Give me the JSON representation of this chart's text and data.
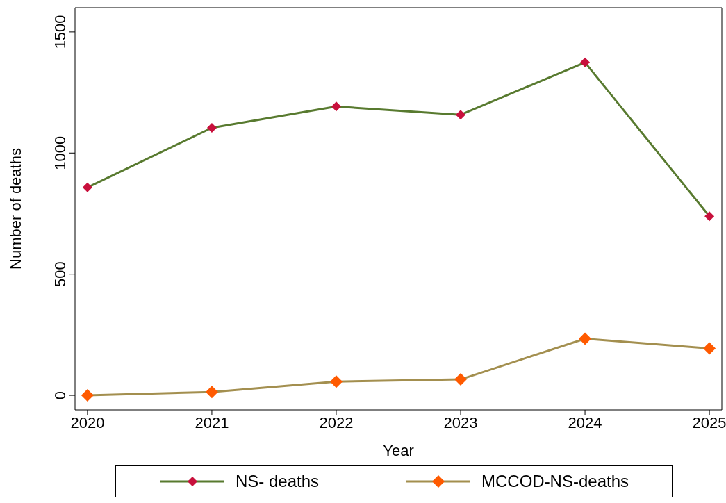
{
  "chart_data": {
    "type": "line",
    "xlabel": "Year",
    "ylabel": "Number of deaths",
    "x": [
      2020,
      2021,
      2022,
      2023,
      2024,
      2025
    ],
    "xlim": [
      2019.9,
      2025.1
    ],
    "xticks": [
      2020,
      2021,
      2022,
      2023,
      2024,
      2025
    ],
    "ylim": [
      -60,
      1600
    ],
    "yticks": [
      0,
      500,
      1000,
      1500
    ],
    "legend": "bottom",
    "marker": "diamond",
    "series": [
      {
        "name": "NS- deaths",
        "color": "#587a2f",
        "colors": [
          "#c8103c",
          "#c8103c",
          "#c8103c",
          "#c8103c",
          "#c8103c",
          "#c8103c"
        ],
        "values": [
          858,
          1104,
          1192,
          1158,
          1374,
          739
        ]
      },
      {
        "name": "MCCOD-NS-deaths",
        "color": "#a38f4f",
        "colors": [
          "#ff5a00",
          "#ff5a00",
          "#ff5a00",
          "#ff5a00",
          "#ff5a00",
          "#ff5a00"
        ],
        "values": [
          0,
          14,
          57,
          66,
          234,
          194
        ]
      }
    ]
  }
}
